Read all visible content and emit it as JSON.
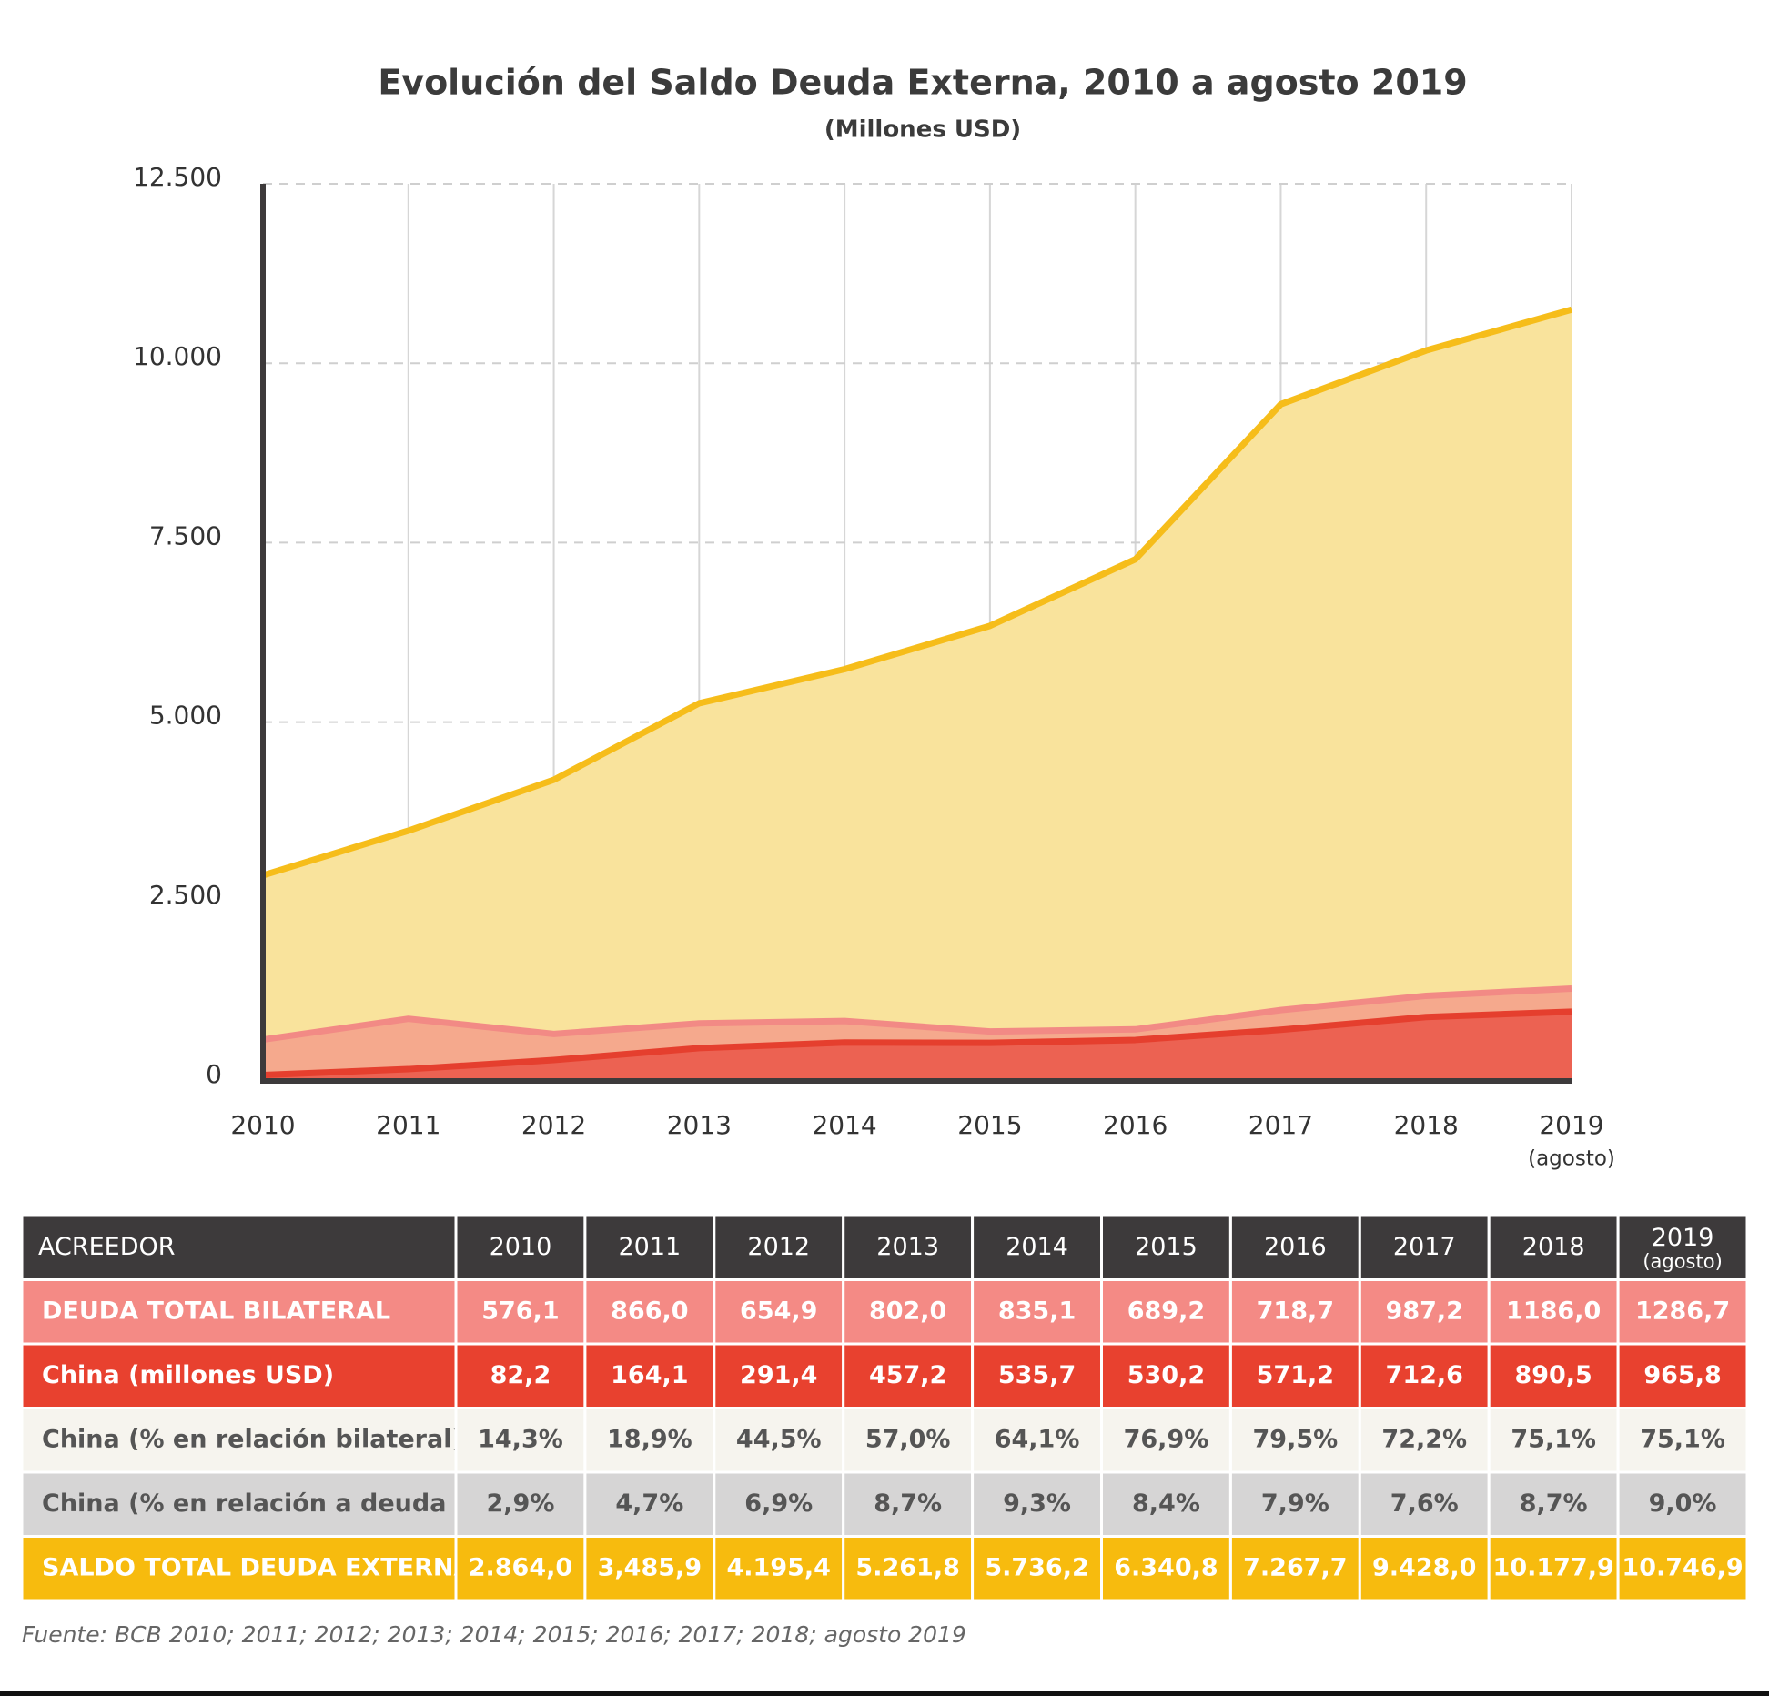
{
  "chart_data": {
    "type": "area",
    "title": "Evolución del Saldo Deuda Externa, 2010 a agosto 2019",
    "subtitle": "(Millones USD)",
    "categories": [
      "2010",
      "2011",
      "2012",
      "2013",
      "2014",
      "2015",
      "2016",
      "2017",
      "2018",
      "2019"
    ],
    "last_category_note": "(agosto)",
    "ylim": [
      0,
      12500
    ],
    "yticks": [
      0,
      {
        "value": 2500,
        "label": "2.500"
      },
      {
        "value": 5000,
        "label": "5.000"
      },
      {
        "value": 7500,
        "label": "7.500"
      },
      {
        "value": 10000,
        "label": "10.000"
      },
      {
        "value": 12500,
        "label": "12.500"
      }
    ],
    "grid": true,
    "series": [
      {
        "name": "SALDO TOTAL DEUDA EXTERNA",
        "color": "#f6bd1a",
        "fill": "#f9e39c",
        "values": [
          2864.0,
          3485.9,
          4195.4,
          5261.8,
          5736.2,
          6340.8,
          7267.7,
          9428.0,
          10177.9,
          10746.9
        ]
      },
      {
        "name": "DEUDA TOTAL BILATERAL",
        "color": "#f28a85",
        "fill": "#f5a98d",
        "values": [
          576.1,
          866.0,
          654.9,
          802.0,
          835.1,
          689.2,
          718.7,
          987.2,
          1186.0,
          1286.7
        ]
      },
      {
        "name": "China (millones USD)",
        "color": "#e53f2e",
        "fill": "#ec6252",
        "values": [
          82.2,
          164.1,
          291.4,
          457.2,
          535.7,
          530.2,
          571.2,
          712.6,
          890.5,
          965.8
        ]
      }
    ]
  },
  "table": {
    "header": [
      "ACREEDOR",
      "2010",
      "2011",
      "2012",
      "2013",
      "2014",
      "2015",
      "2016",
      "2017",
      "2018",
      "2019"
    ],
    "header_note": "(agosto)",
    "rows": [
      [
        "DEUDA TOTAL BILATERAL",
        "576,1",
        "866,0",
        "654,9",
        "802,0",
        "835,1",
        "689,2",
        "718,7",
        "987,2",
        "1186,0",
        "1286,7"
      ],
      [
        "China (millones USD)",
        "82,2",
        "164,1",
        "291,4",
        "457,2",
        "535,7",
        "530,2",
        "571,2",
        "712,6",
        "890,5",
        "965,8"
      ],
      [
        "China (% en relación bilateral)",
        "14,3%",
        "18,9%",
        "44,5%",
        "57,0%",
        "64,1%",
        "76,9%",
        "79,5%",
        "72,2%",
        "75,1%",
        "75,1%"
      ],
      [
        "China (% en relación a deuda total)",
        "2,9%",
        "4,7%",
        "6,9%",
        "8,7%",
        "9,3%",
        "8,4%",
        "7,9%",
        "7,6%",
        "8,7%",
        "9,0%"
      ],
      [
        "SALDO TOTAL DEUDA EXTERNA",
        "2.864,0",
        "3,485,9",
        "4.195,4",
        "5.261,8",
        "5.736,2",
        "6.340,8",
        "7.267,7",
        "9.428,0",
        "10.177,9",
        "10.746,9"
      ]
    ]
  },
  "source": "Fuente: BCB 2010; 2011; 2012; 2013; 2014; 2015; 2016; 2017; 2018; agosto 2019"
}
